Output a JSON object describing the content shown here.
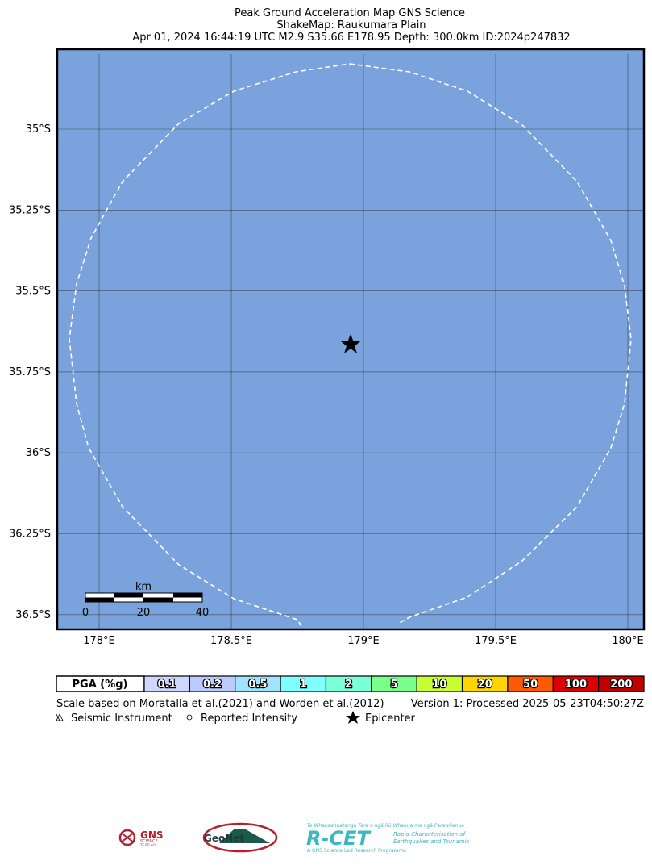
{
  "header": {
    "title": "Peak Ground Acceleration Map GNS Science",
    "subtitle": "ShakeMap: Raukumara Plain",
    "event": "Apr 01, 2024 16:44:19 UTC M2.9 S35.66 E178.95 Depth: 300.0km ID:2024p247832"
  },
  "map": {
    "lat_labels": [
      "35°S",
      "35.25°S",
      "35.5°S",
      "35.75°S",
      "36°S",
      "36.25°S",
      "36.5°S"
    ],
    "lon_labels": [
      "178°E",
      "178.5°E",
      "179°E",
      "179.5°E",
      "180°E"
    ],
    "scale_bar": {
      "unit": "km",
      "labels": [
        0,
        20,
        40
      ]
    }
  },
  "legend": {
    "title": "PGA (%g)",
    "bins": [
      {
        "label": 0.1,
        "color": "#d0d7ff"
      },
      {
        "label": 0.2,
        "color": "#bccbff"
      },
      {
        "label": 0.5,
        "color": "#a0e4ff"
      },
      {
        "label": 1,
        "color": "#80ffff"
      },
      {
        "label": 2,
        "color": "#7affd6"
      },
      {
        "label": 5,
        "color": "#7aff8c"
      },
      {
        "label": 10,
        "color": "#c8ff32"
      },
      {
        "label": 20,
        "color": "#ffd500"
      },
      {
        "label": 50,
        "color": "#ff5a00"
      },
      {
        "label": 100,
        "color": "#dc0000"
      },
      {
        "label": 200,
        "color": "#c00000"
      }
    ]
  },
  "footer": {
    "scale_note": "Scale based on Moratalla et al.(2021) and Worden et al.(2012)",
    "version": "Version 1: Processed 2025-05-23T04:50:27Z",
    "symbols": [
      "Seismic Instrument",
      "Reported Intensity",
      "Epicenter"
    ]
  },
  "logos": {
    "gns": "GNS",
    "gns_sub": "SCIENCE",
    "gns_maori": "TE PŪ AO",
    "geonet": "GeoNet",
    "rcet_maori": "Te Whakaahuatanga Tere o ngā Rū Whenua me ngā Parawhenua",
    "rcet": "R-CET",
    "rcet_line1": "Rapid Characterisation of",
    "rcet_line2": "Earthquakes and Tsunamis",
    "rcet_tag": "A GNS Science Led Research Programme"
  }
}
